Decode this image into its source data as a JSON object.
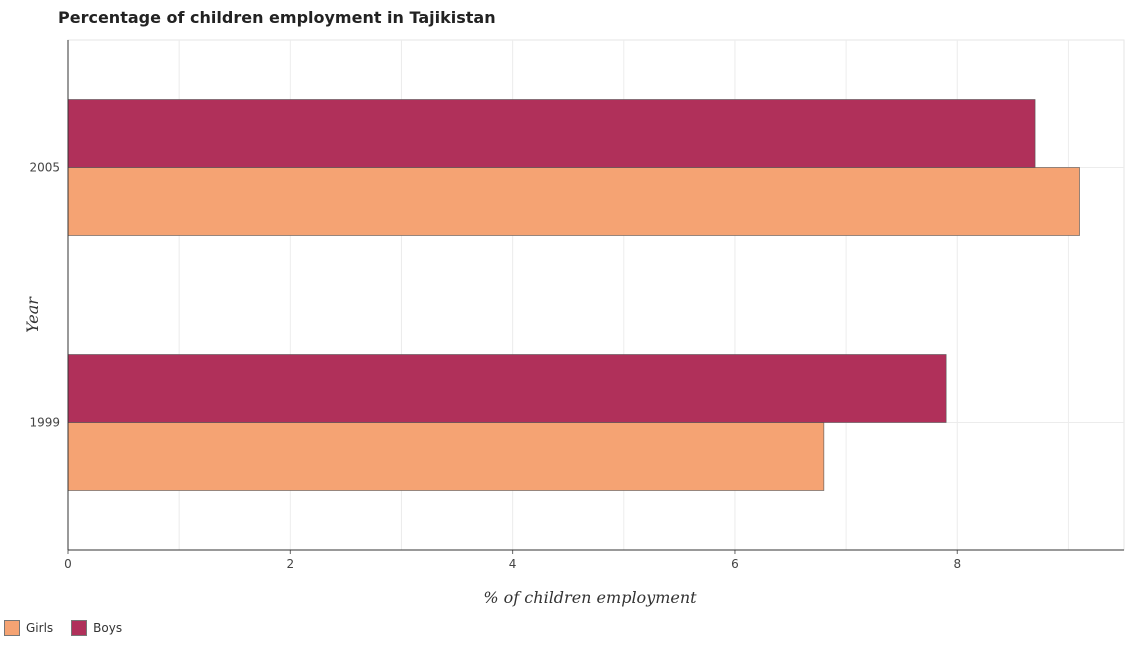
{
  "chart_data": {
    "type": "bar",
    "orientation": "horizontal",
    "title": "Percentage of children employment in Tajikistan",
    "xlabel": "% of children employment",
    "ylabel": "Year",
    "categories": [
      "1999",
      "2005"
    ],
    "series": [
      {
        "name": "Girls",
        "color": "#f5a373",
        "values": [
          6.8,
          9.1
        ]
      },
      {
        "name": "Boys",
        "color": "#b0305a",
        "values": [
          7.9,
          8.7
        ]
      }
    ],
    "xlim": [
      0,
      9.5
    ],
    "xticks": [
      "0",
      "2",
      "4",
      "6",
      "8"
    ],
    "grid": true,
    "legend_position": "bottom-left"
  }
}
